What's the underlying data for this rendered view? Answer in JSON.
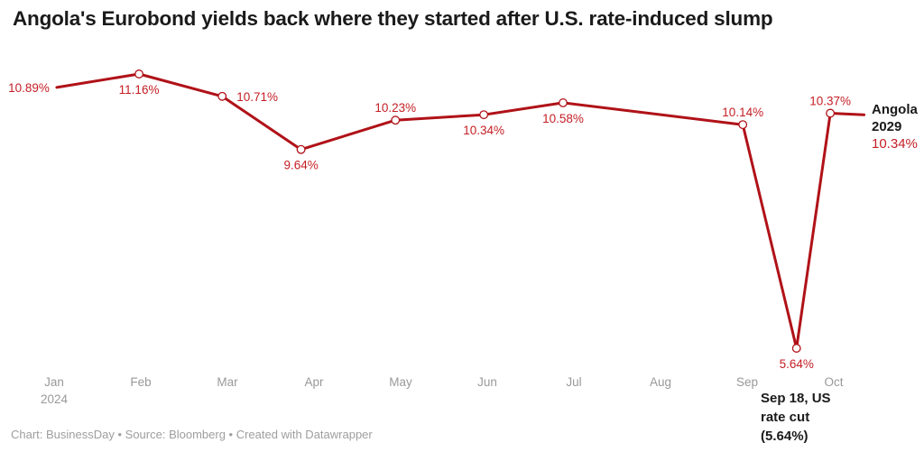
{
  "title": "Angola's Eurobond yields back where they started after U.S. rate-induced slump",
  "footer": "Chart: BusinessDay • Source: Bloomberg • Created with Datawrapper",
  "colors": {
    "line": "#b01218",
    "data_label": "#c41e24",
    "axis_label": "#999999",
    "title": "#1a1a1a",
    "annotation": "#1a1a1a",
    "footer": "#9e9e9e",
    "marker_fill": "#ffffff"
  },
  "chart_data": {
    "type": "line",
    "title": "Angola's Eurobond yields back where they started after U.S. rate-induced slump",
    "xlabel": "",
    "ylabel": "",
    "grid": false,
    "legend_position": "right-of-line-end",
    "ylim": [
      5.64,
      11.16
    ],
    "x_tick_labels": [
      "Jan",
      "Feb",
      "Mar",
      "Apr",
      "May",
      "Jun",
      "Jul",
      "Aug",
      "Sep",
      "Oct"
    ],
    "x_year_label": "2024",
    "series": [
      {
        "name": "Angola 2029",
        "points": [
          {
            "date": "Jan 2024",
            "x": 0.03,
            "value": 10.89,
            "label": "10.89%",
            "label_side": "left",
            "marker": false
          },
          {
            "date": "Feb 2024",
            "x": 0.98,
            "value": 11.16,
            "label": "11.16%",
            "label_side": "below",
            "marker": true
          },
          {
            "date": "Mar 2024",
            "x": 1.94,
            "value": 10.71,
            "label": "10.71%",
            "label_side": "right",
            "marker": true
          },
          {
            "date": "Apr 2024",
            "x": 2.85,
            "value": 9.64,
            "label": "9.64%",
            "label_side": "below",
            "marker": true
          },
          {
            "date": "May 2024",
            "x": 3.94,
            "value": 10.23,
            "label": "10.23%",
            "label_side": "above",
            "marker": true
          },
          {
            "date": "Jun 2024",
            "x": 4.96,
            "value": 10.34,
            "label": "10.34%",
            "label_side": "below",
            "marker": true
          },
          {
            "date": "Jul 2024",
            "x": 5.875,
            "value": 10.58,
            "label": "10.58%",
            "label_side": "below",
            "marker": true
          },
          {
            "date": "Sep 2024",
            "x": 7.95,
            "value": 10.14,
            "label": "10.14%",
            "label_side": "above",
            "marker": true
          },
          {
            "date": "Sep 18 2024",
            "x": 8.57,
            "value": 5.64,
            "label": "5.64%",
            "label_side": "below",
            "marker": true
          },
          {
            "date": "Oct 2024",
            "x": 8.96,
            "value": 10.37,
            "label": "10.37%",
            "label_side": "above",
            "marker": true
          },
          {
            "date": "Oct 11 2024",
            "x": 9.35,
            "value": 10.34,
            "label": "",
            "label_side": "none",
            "marker": false
          }
        ]
      }
    ],
    "end_label": {
      "name": "Angola 2029",
      "value": "10.34%"
    },
    "annotation": {
      "lines": [
        "Sep 18, US",
        "rate cut",
        "(5.64%)"
      ]
    }
  }
}
